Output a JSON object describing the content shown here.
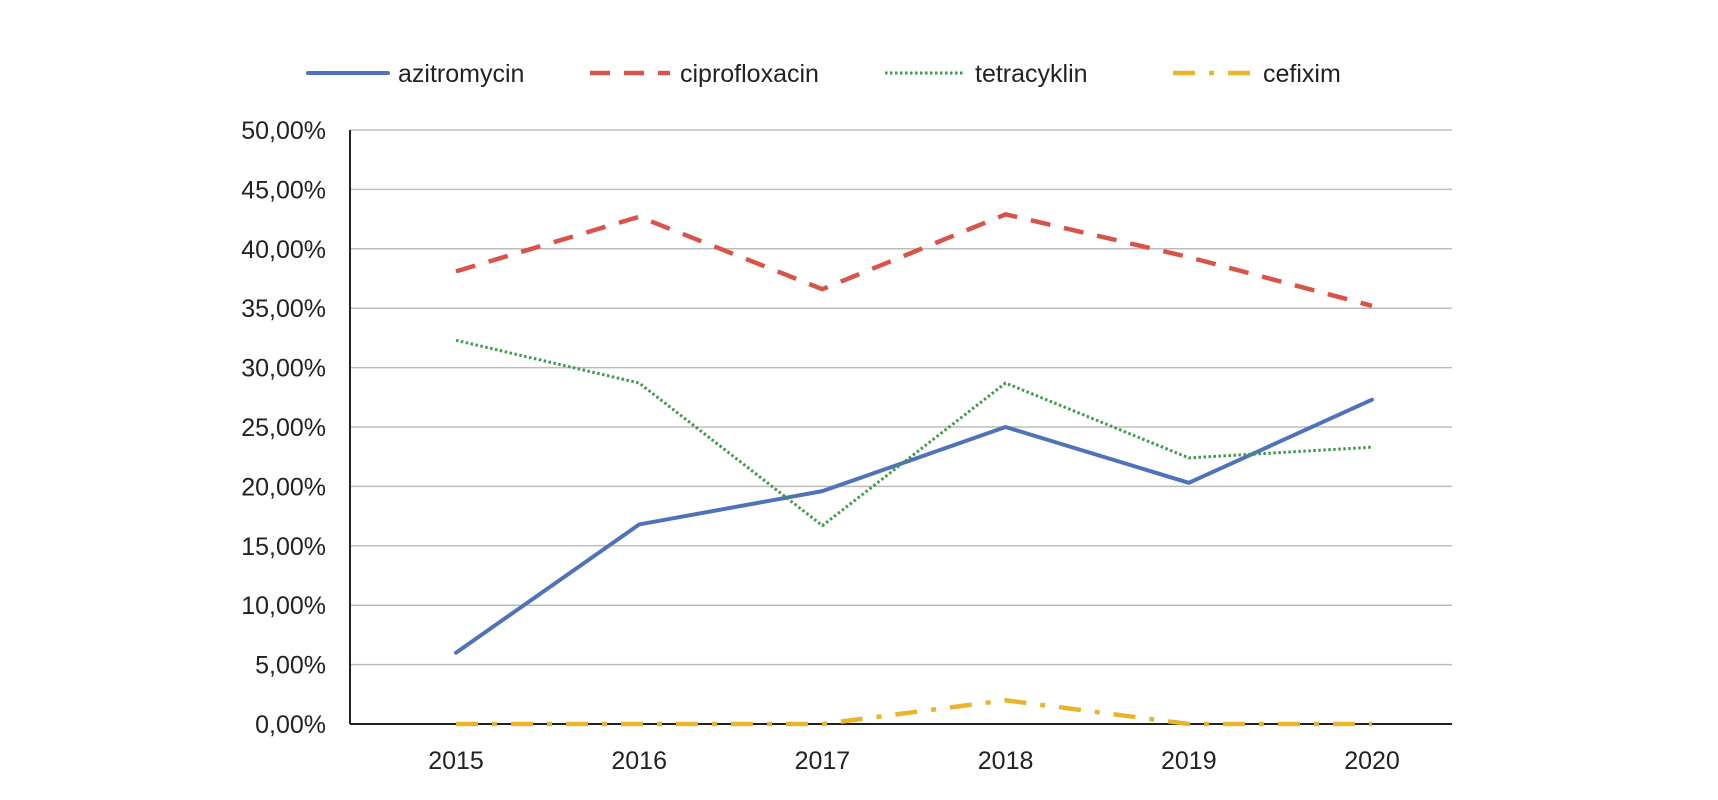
{
  "chart_data": {
    "type": "line",
    "categories": [
      "2015",
      "2016",
      "2017",
      "2018",
      "2019",
      "2020"
    ],
    "series": [
      {
        "name": "azitromycin",
        "color": "#4f73b8",
        "dash": "solid",
        "values": [
          0.06,
          0.168,
          0.196,
          0.25,
          0.203,
          0.273
        ]
      },
      {
        "name": "ciprofloxacin",
        "color": "#d9534a",
        "dash": "dashed",
        "values": [
          0.381,
          0.427,
          0.366,
          0.429,
          0.393,
          0.352
        ]
      },
      {
        "name": "tetracyklin",
        "color": "#3f9a4a",
        "dash": "dotted",
        "values": [
          0.323,
          0.287,
          0.167,
          0.287,
          0.224,
          0.233
        ]
      },
      {
        "name": "cefixim",
        "color": "#e8b52c",
        "dash": "dashdot",
        "values": [
          0.0,
          0.0,
          0.0,
          0.02,
          0.0,
          0.0
        ]
      }
    ],
    "yticks": [
      "0,00%",
      "5,00%",
      "10,00%",
      "15,00%",
      "20,00%",
      "25,00%",
      "30,00%",
      "35,00%",
      "40,00%",
      "45,00%",
      "50,00%"
    ],
    "ylim": [
      0,
      0.5
    ],
    "grid": true,
    "legend_position": "top-center"
  }
}
